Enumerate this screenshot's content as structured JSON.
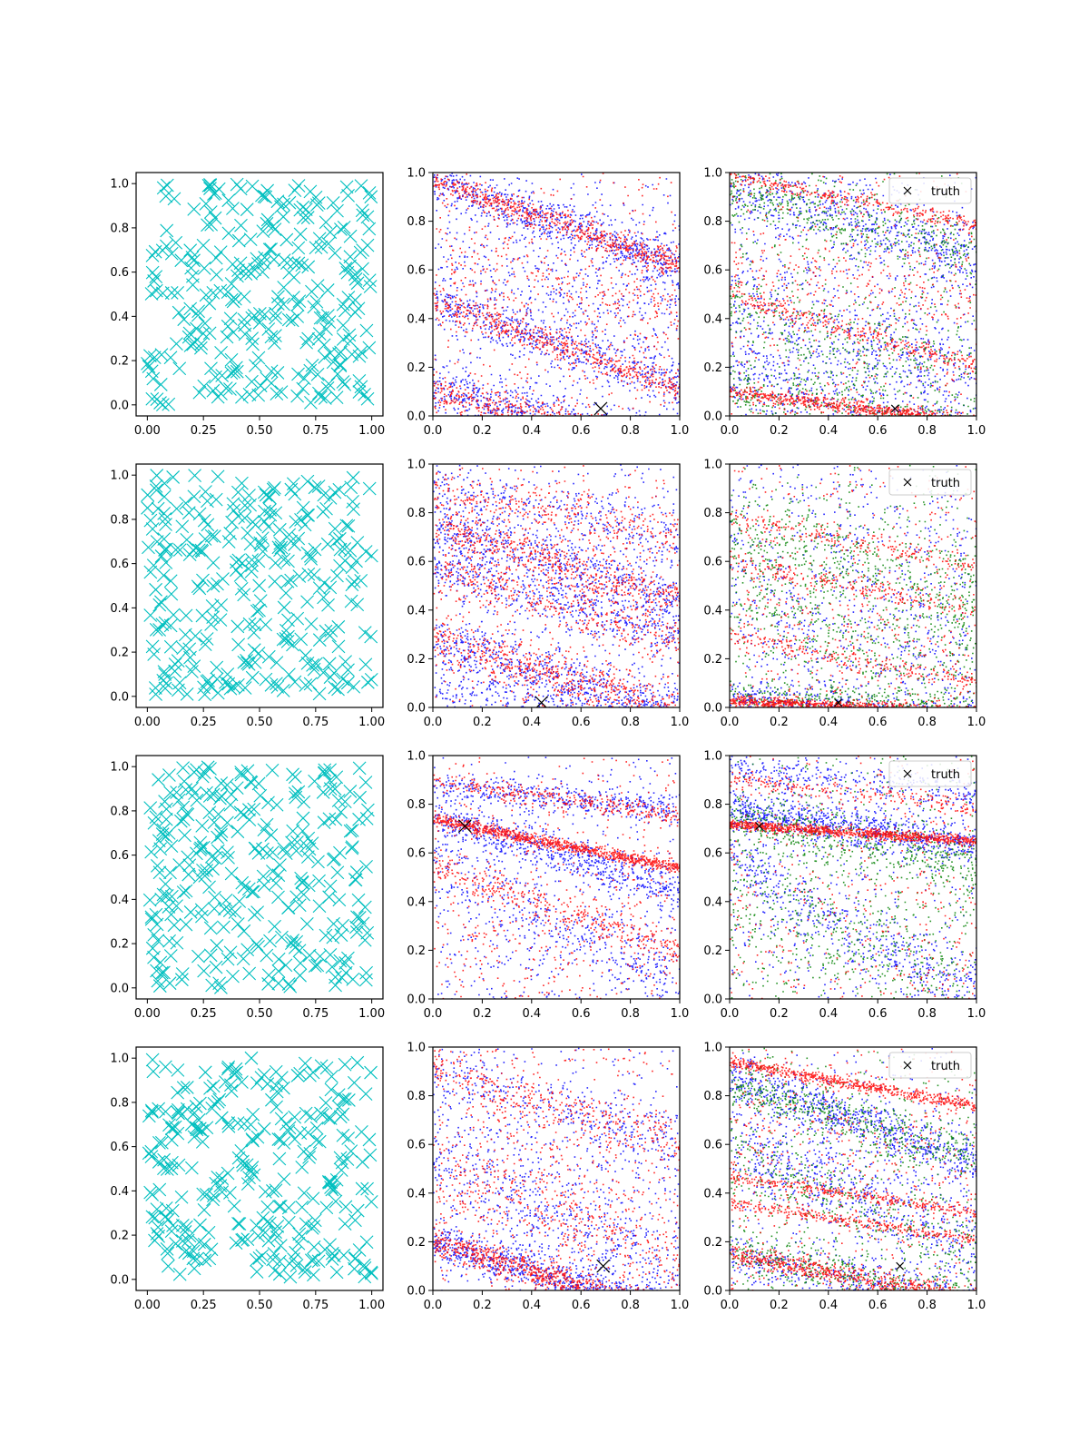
{
  "figure": {
    "rows": 4,
    "cols": 3
  },
  "colors": {
    "cyan": "#00bfbf",
    "red": "#ff0000",
    "blue": "#0000ff",
    "green": "#008000",
    "truth": "#000000"
  },
  "legend": {
    "label": "truth"
  },
  "chart_data": [
    {
      "type": "scatter",
      "panel": "r1c1",
      "xlim": [
        -0.05,
        1.05
      ],
      "ylim": [
        -0.05,
        1.05
      ],
      "xticks": [
        "0.00",
        "0.25",
        "0.50",
        "0.75",
        "1.00"
      ],
      "yticks": [
        "0.0",
        "0.2",
        "0.4",
        "0.6",
        "0.8",
        "1.0"
      ],
      "series": [
        {
          "marker": "x",
          "color": "cyan",
          "count": 300,
          "distribution": "uniform",
          "seed": 11
        }
      ]
    },
    {
      "type": "scatter",
      "panel": "r1c2",
      "xlim": [
        0,
        1
      ],
      "ylim": [
        0,
        1
      ],
      "xticks": [
        "0.0",
        "0.2",
        "0.4",
        "0.6",
        "0.8",
        "1.0"
      ],
      "yticks": [
        "0.0",
        "0.2",
        "0.4",
        "0.6",
        "0.8",
        "1.0"
      ],
      "truth": [
        0.68,
        0.03
      ],
      "series": [
        {
          "color": "blue",
          "bands": [
            [
              0.97,
              -0.35,
              0.05,
              700
            ],
            [
              0.47,
              -0.35,
              0.05,
              500
            ],
            [
              0.12,
              -0.25,
              0.05,
              700
            ],
            [
              0.6,
              -0.2,
              0.12,
              300
            ]
          ]
        },
        {
          "color": "red",
          "bands": [
            [
              0.97,
              -0.35,
              0.025,
              600
            ],
            [
              0.47,
              -0.35,
              0.03,
              500
            ],
            [
              0.1,
              -0.25,
              0.04,
              600
            ],
            [
              0.6,
              -0.1,
              0.12,
              300
            ]
          ]
        }
      ]
    },
    {
      "type": "scatter",
      "panel": "r1c3",
      "xlim": [
        0,
        1
      ],
      "ylim": [
        0,
        1
      ],
      "legend": true,
      "truth": [
        0.67,
        0.03
      ],
      "series": [
        {
          "color": "blue",
          "bands": [
            [
              0.95,
              -0.3,
              0.08,
              600
            ],
            [
              0.45,
              -0.3,
              0.12,
              500
            ],
            [
              0.15,
              -0.3,
              0.1,
              500
            ]
          ]
        },
        {
          "color": "green",
          "bands": [
            [
              0.92,
              -0.25,
              0.06,
              400
            ],
            [
              0.45,
              -0.3,
              0.1,
              300
            ],
            [
              0.12,
              -0.2,
              0.06,
              300
            ]
          ]
        },
        {
          "color": "red",
          "bands": [
            [
              0.99,
              -0.2,
              0.015,
              300
            ],
            [
              0.5,
              -0.3,
              0.02,
              300
            ],
            [
              0.1,
              -0.12,
              0.015,
              600
            ],
            [
              0.6,
              -0.1,
              0.1,
              200
            ]
          ]
        }
      ]
    },
    {
      "type": "scatter",
      "panel": "r2c1",
      "xlim": [
        -0.05,
        1.05
      ],
      "ylim": [
        -0.05,
        1.05
      ],
      "xticks": [
        "0.00",
        "0.25",
        "0.50",
        "0.75",
        "1.00"
      ],
      "yticks": [
        "0.0",
        "0.2",
        "0.4",
        "0.6",
        "0.8",
        "1.0"
      ],
      "series": [
        {
          "marker": "x",
          "color": "cyan",
          "count": 300,
          "distribution": "uniform",
          "seed": 23
        }
      ]
    },
    {
      "type": "scatter",
      "panel": "r2c2",
      "xlim": [
        0,
        1
      ],
      "ylim": [
        0,
        1
      ],
      "truth": [
        0.44,
        0.02
      ],
      "series": [
        {
          "color": "blue",
          "bands": [
            [
              0.75,
              -0.3,
              0.05,
              500
            ],
            [
              0.6,
              -0.3,
              0.06,
              500
            ],
            [
              0.27,
              -0.3,
              0.06,
              600
            ],
            [
              0.05,
              -0.1,
              0.05,
              300
            ],
            [
              0.9,
              -0.2,
              0.06,
              300
            ]
          ]
        },
        {
          "color": "red",
          "bands": [
            [
              0.75,
              -0.3,
              0.04,
              500
            ],
            [
              0.58,
              -0.3,
              0.05,
              400
            ],
            [
              0.28,
              -0.3,
              0.05,
              600
            ],
            [
              0.9,
              -0.2,
              0.05,
              300
            ]
          ]
        }
      ]
    },
    {
      "type": "scatter",
      "panel": "r2c3",
      "xlim": [
        0,
        1
      ],
      "ylim": [
        0,
        1
      ],
      "legend": true,
      "truth": [
        0.44,
        0.02
      ],
      "series": [
        {
          "color": "blue",
          "bands": [
            [
              0.5,
              -0.2,
              0.3,
              500
            ],
            [
              0.05,
              -0.1,
              0.03,
              400
            ]
          ]
        },
        {
          "color": "green",
          "bands": [
            [
              0.75,
              -0.3,
              0.1,
              400
            ],
            [
              0.45,
              -0.3,
              0.15,
              400
            ],
            [
              0.05,
              -0.05,
              0.03,
              300
            ]
          ]
        },
        {
          "color": "red",
          "bands": [
            [
              0.03,
              -0.05,
              0.012,
              900
            ],
            [
              0.78,
              -0.2,
              0.02,
              200
            ],
            [
              0.6,
              -0.2,
              0.02,
              200
            ],
            [
              0.3,
              -0.2,
              0.02,
              200
            ],
            [
              0.4,
              -0.1,
              0.15,
              150
            ]
          ]
        }
      ]
    },
    {
      "type": "scatter",
      "panel": "r3c1",
      "xlim": [
        -0.05,
        1.05
      ],
      "ylim": [
        -0.05,
        1.05
      ],
      "xticks": [
        "0.00",
        "0.25",
        "0.50",
        "0.75",
        "1.00"
      ],
      "yticks": [
        "0.0",
        "0.2",
        "0.4",
        "0.6",
        "0.8",
        "1.0"
      ],
      "series": [
        {
          "marker": "x",
          "color": "cyan",
          "count": 300,
          "distribution": "uniform",
          "seed": 37
        }
      ]
    },
    {
      "type": "scatter",
      "panel": "r3c2",
      "xlim": [
        0,
        1
      ],
      "ylim": [
        0,
        1
      ],
      "truth": [
        0.13,
        0.71
      ],
      "series": [
        {
          "color": "blue",
          "bands": [
            [
              0.75,
              -0.3,
              0.04,
              600
            ],
            [
              0.88,
              -0.1,
              0.03,
              400
            ],
            [
              0.55,
              -0.5,
              0.08,
              300
            ],
            [
              0.4,
              -0.1,
              0.2,
              200
            ]
          ]
        },
        {
          "color": "red",
          "bands": [
            [
              0.74,
              -0.2,
              0.012,
              900
            ],
            [
              0.9,
              -0.15,
              0.02,
              300
            ],
            [
              0.55,
              -0.35,
              0.03,
              300
            ],
            [
              0.3,
              -0.1,
              0.2,
              200
            ]
          ]
        }
      ]
    },
    {
      "type": "scatter",
      "panel": "r3c3",
      "xlim": [
        0,
        1
      ],
      "ylim": [
        0,
        1
      ],
      "legend": true,
      "truth": [
        0.12,
        0.71
      ],
      "series": [
        {
          "color": "blue",
          "bands": [
            [
              0.78,
              -0.15,
              0.04,
              800
            ],
            [
              0.55,
              -0.55,
              0.08,
              500
            ],
            [
              0.95,
              -0.1,
              0.03,
              300
            ]
          ]
        },
        {
          "color": "green",
          "bands": [
            [
              0.75,
              -0.2,
              0.06,
              500
            ],
            [
              0.45,
              -0.4,
              0.12,
              400
            ]
          ]
        },
        {
          "color": "red",
          "bands": [
            [
              0.72,
              -0.07,
              0.01,
              900
            ],
            [
              0.9,
              -0.1,
              0.02,
              200
            ],
            [
              0.3,
              -0.1,
              0.2,
              100
            ]
          ]
        }
      ]
    },
    {
      "type": "scatter",
      "panel": "r4c1",
      "xlim": [
        -0.05,
        1.05
      ],
      "ylim": [
        -0.05,
        1.05
      ],
      "xticks": [
        "0.00",
        "0.25",
        "0.50",
        "0.75",
        "1.00"
      ],
      "yticks": [
        "0.0",
        "0.2",
        "0.4",
        "0.6",
        "0.8",
        "1.0"
      ],
      "series": [
        {
          "marker": "x",
          "color": "cyan",
          "count": 300,
          "distribution": "uniform",
          "seed": 53
        }
      ]
    },
    {
      "type": "scatter",
      "panel": "r4c2",
      "xlim": [
        0,
        1
      ],
      "ylim": [
        0,
        1
      ],
      "truth": [
        0.69,
        0.1
      ],
      "series": [
        {
          "color": "blue",
          "bands": [
            [
              0.2,
              -0.3,
              0.04,
              800
            ],
            [
              0.55,
              -0.5,
              0.1,
              400
            ],
            [
              0.9,
              -0.3,
              0.06,
              300
            ],
            [
              0.5,
              -0.1,
              0.2,
              200
            ]
          ]
        },
        {
          "color": "red",
          "bands": [
            [
              0.2,
              -0.3,
              0.03,
              800
            ],
            [
              0.5,
              -0.4,
              0.08,
              300
            ],
            [
              0.9,
              -0.3,
              0.05,
              300
            ],
            [
              0.5,
              -0.1,
              0.2,
              200
            ]
          ]
        }
      ]
    },
    {
      "type": "scatter",
      "panel": "r4c3",
      "xlim": [
        0,
        1
      ],
      "ylim": [
        0,
        1
      ],
      "legend": true,
      "truth": [
        0.69,
        0.1
      ],
      "series": [
        {
          "color": "blue",
          "bands": [
            [
              0.88,
              -0.35,
              0.05,
              700
            ],
            [
              0.6,
              -0.4,
              0.08,
              500
            ],
            [
              0.15,
              -0.2,
              0.05,
              400
            ]
          ]
        },
        {
          "color": "green",
          "bands": [
            [
              0.85,
              -0.3,
              0.05,
              500
            ],
            [
              0.55,
              -0.4,
              0.08,
              300
            ],
            [
              0.15,
              -0.2,
              0.05,
              400
            ]
          ]
        },
        {
          "color": "red",
          "bands": [
            [
              0.94,
              -0.18,
              0.012,
              600
            ],
            [
              0.47,
              -0.15,
              0.012,
              300
            ],
            [
              0.36,
              -0.15,
              0.012,
              300
            ],
            [
              0.15,
              -0.18,
              0.02,
              600
            ],
            [
              0.6,
              -0.1,
              0.15,
              200
            ]
          ]
        }
      ]
    }
  ]
}
